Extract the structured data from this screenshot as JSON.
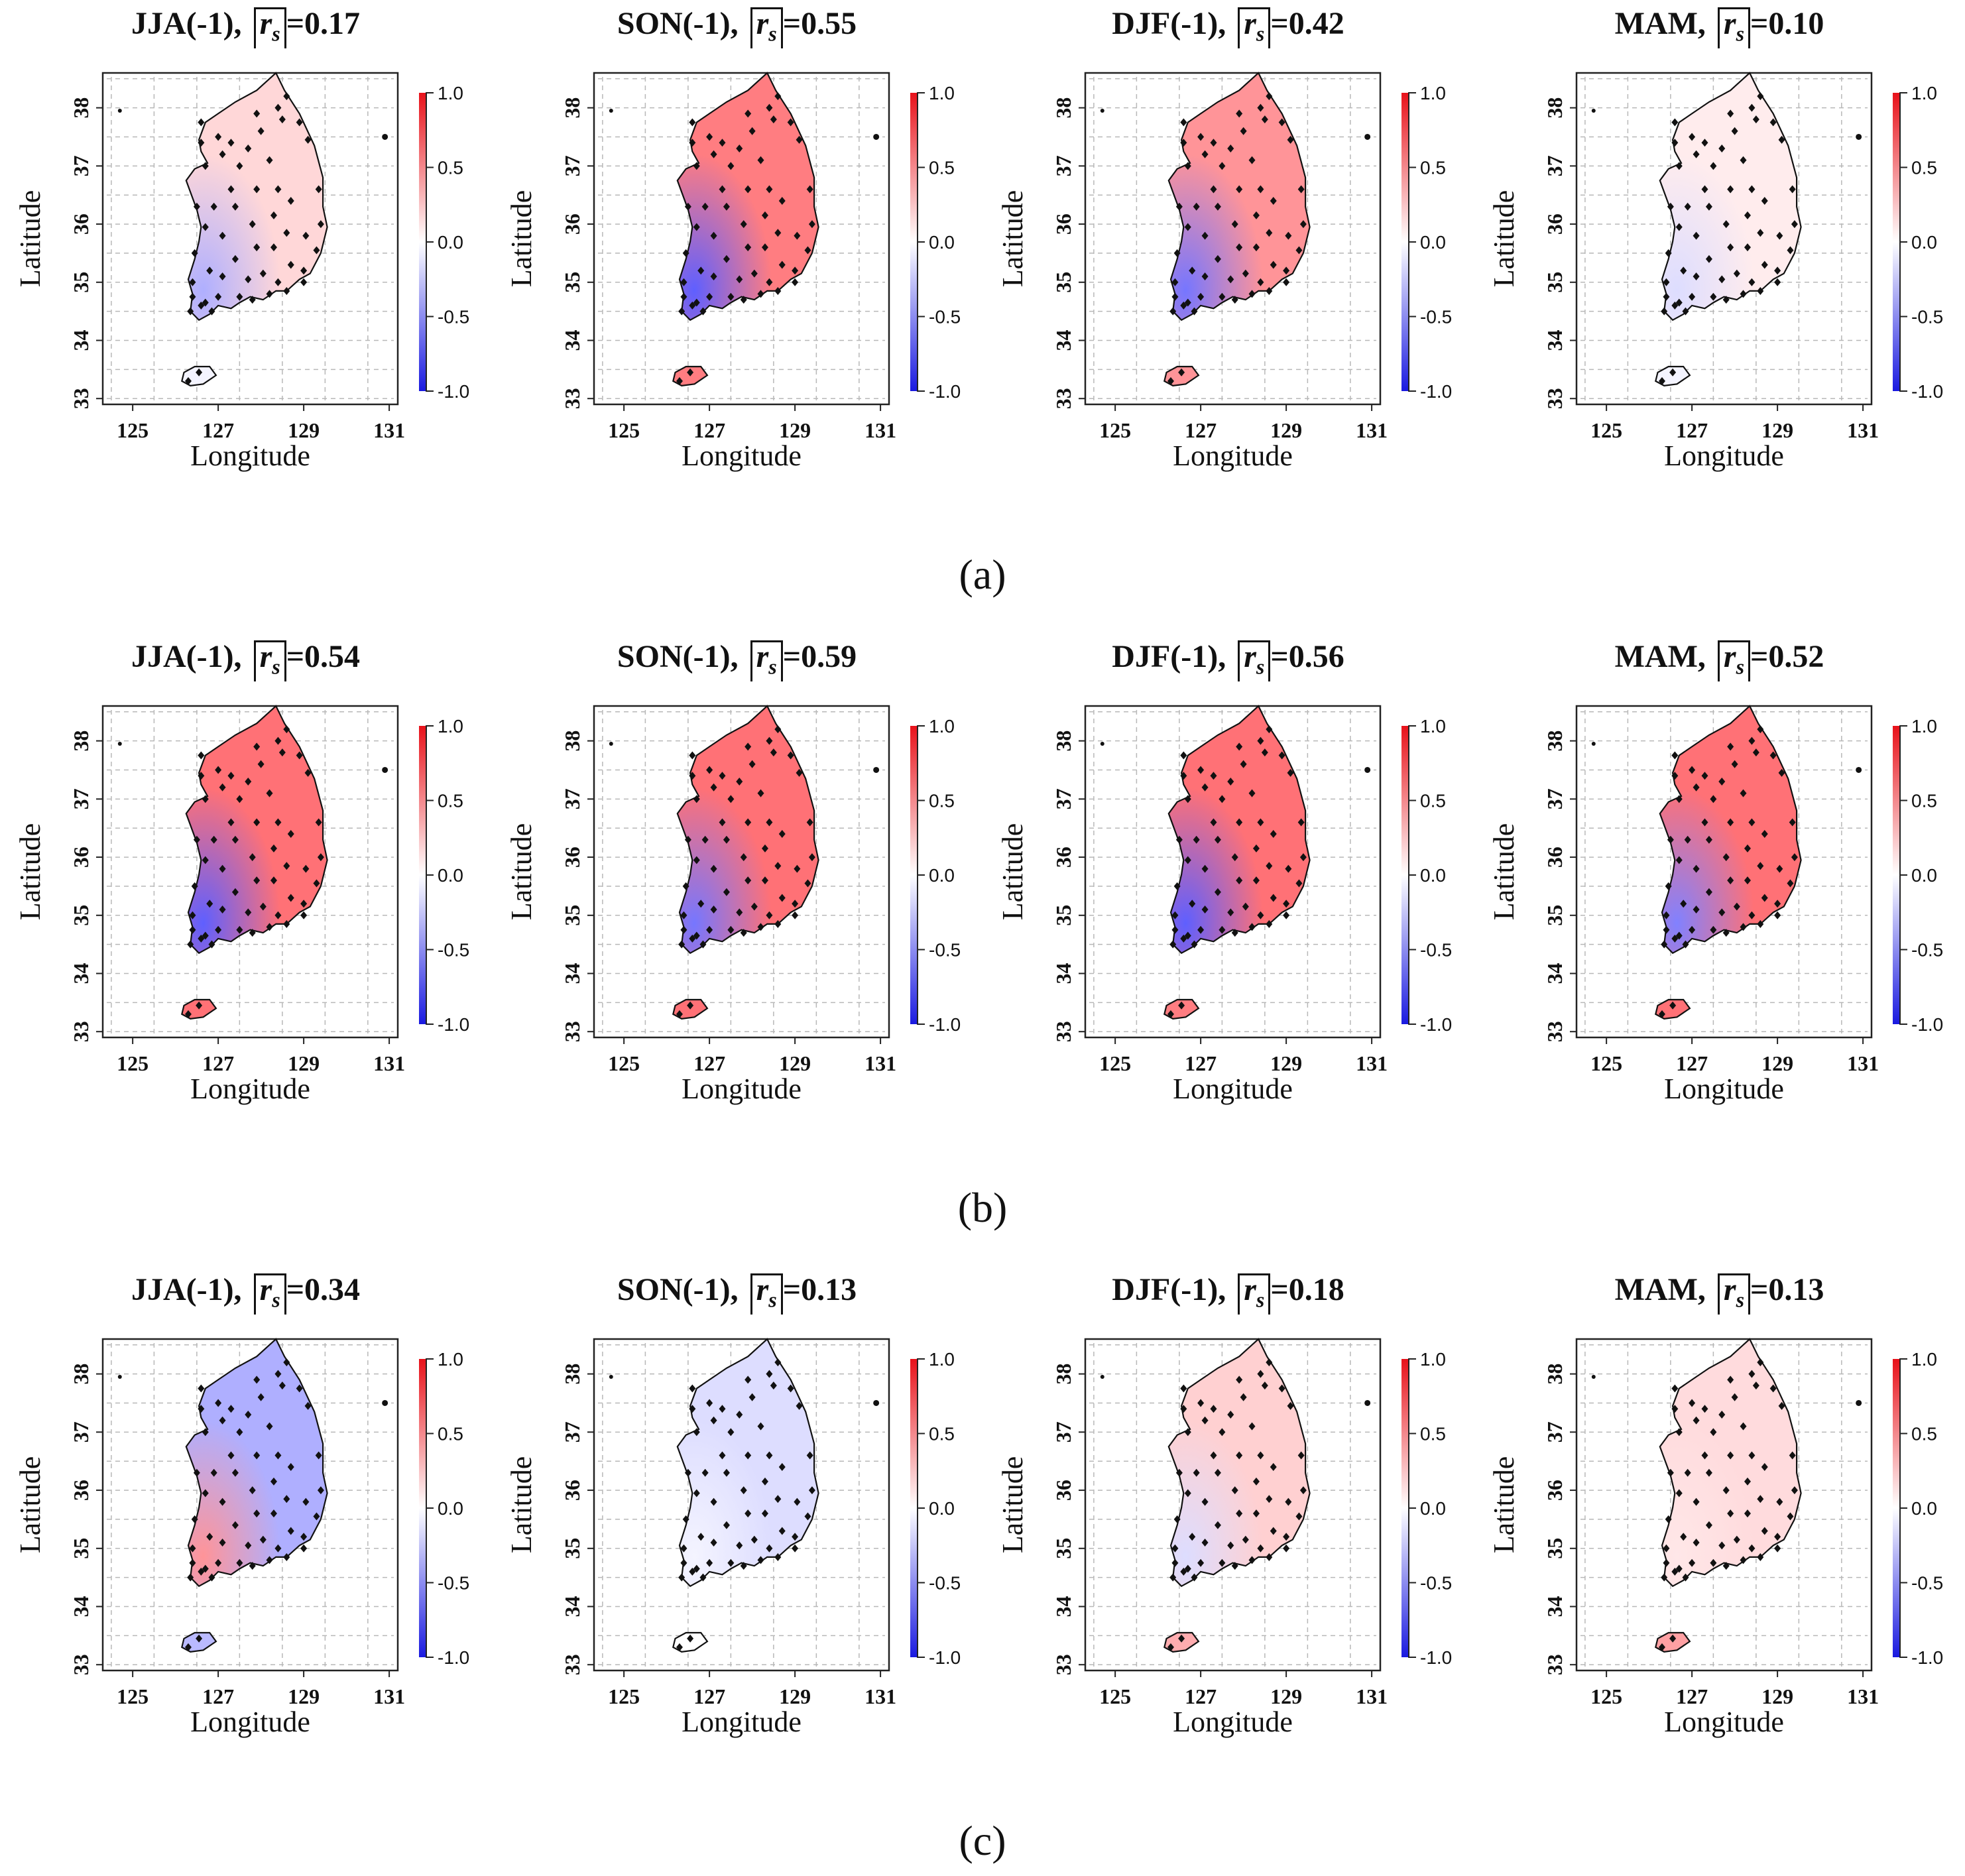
{
  "colorbar": {
    "ticks": [
      "1.0",
      "0.5",
      "0.0",
      "-0.5",
      "-1.0"
    ],
    "colors": {
      "high": "#e8121a",
      "mid": "#ffffff",
      "low": "#1a1ae0"
    }
  },
  "map_axes": {
    "xlabel": "Longitude",
    "ylabel": "Latitude",
    "xticks": [
      "125",
      "127",
      "129",
      "131"
    ],
    "yticks": [
      "33",
      "34",
      "35",
      "36",
      "37",
      "38"
    ],
    "xlim": [
      124.3,
      131.2
    ],
    "ylim": [
      32.9,
      38.6
    ]
  },
  "rows": [
    {
      "label": "(a)",
      "panels": [
        {
          "season": "JJA(-1),",
          "rs_label": "r",
          "rs_sub": "s",
          "rs_value": "=0.17",
          "mean_abs_rs": 0.17,
          "overall_tint": 0.17,
          "jeju_tint": -0.05,
          "southwest_tint": -0.35
        },
        {
          "season": "SON(-1),",
          "rs_label": "r",
          "rs_sub": "s",
          "rs_value": "=0.55",
          "mean_abs_rs": 0.55,
          "overall_tint": 0.55,
          "jeju_tint": 0.55,
          "southwest_tint": -0.7
        },
        {
          "season": "DJF(-1),",
          "rs_label": "r",
          "rs_sub": "s",
          "rs_value": "=0.42",
          "mean_abs_rs": 0.42,
          "overall_tint": 0.45,
          "jeju_tint": 0.45,
          "southwest_tint": -0.6
        },
        {
          "season": "MAM,",
          "rs_label": "r",
          "rs_sub": "s",
          "rs_value": "=0.10",
          "mean_abs_rs": 0.1,
          "overall_tint": 0.08,
          "jeju_tint": -0.05,
          "southwest_tint": -0.15
        }
      ]
    },
    {
      "label": "(b)",
      "panels": [
        {
          "season": "JJA(-1),",
          "rs_label": "r",
          "rs_sub": "s",
          "rs_value": "=0.54",
          "mean_abs_rs": 0.54,
          "overall_tint": 0.6,
          "jeju_tint": 0.6,
          "southwest_tint": -0.7
        },
        {
          "season": "SON(-1),",
          "rs_label": "r",
          "rs_sub": "s",
          "rs_value": "=0.59",
          "mean_abs_rs": 0.59,
          "overall_tint": 0.6,
          "jeju_tint": 0.6,
          "southwest_tint": -0.6
        },
        {
          "season": "DJF(-1),",
          "rs_label": "r",
          "rs_sub": "s",
          "rs_value": "=0.56",
          "mean_abs_rs": 0.56,
          "overall_tint": 0.6,
          "jeju_tint": 0.55,
          "southwest_tint": -0.7
        },
        {
          "season": "MAM,",
          "rs_label": "r",
          "rs_sub": "s",
          "rs_value": "=0.52",
          "mean_abs_rs": 0.52,
          "overall_tint": 0.6,
          "jeju_tint": 0.6,
          "southwest_tint": -0.55
        }
      ]
    },
    {
      "label": "(c)",
      "panels": [
        {
          "season": "JJA(-1),",
          "rs_label": "r",
          "rs_sub": "s",
          "rs_value": "=0.34",
          "mean_abs_rs": 0.34,
          "overall_tint": -0.35,
          "jeju_tint": -0.3,
          "southwest_tint": 0.45
        },
        {
          "season": "SON(-1),",
          "rs_label": "r",
          "rs_sub": "s",
          "rs_value": "=0.13",
          "mean_abs_rs": 0.13,
          "overall_tint": -0.15,
          "jeju_tint": 0.0,
          "southwest_tint": -0.05
        },
        {
          "season": "DJF(-1),",
          "rs_label": "r",
          "rs_sub": "s",
          "rs_value": "=0.18",
          "mean_abs_rs": 0.18,
          "overall_tint": 0.2,
          "jeju_tint": 0.35,
          "southwest_tint": -0.15
        },
        {
          "season": "MAM,",
          "rs_label": "r",
          "rs_sub": "s",
          "rs_value": "=0.13",
          "mean_abs_rs": 0.13,
          "overall_tint": 0.15,
          "jeju_tint": 0.4,
          "southwest_tint": 0.1
        }
      ]
    }
  ],
  "stations": [
    [
      126.6,
      37.75
    ],
    [
      127.0,
      37.5
    ],
    [
      127.3,
      37.4
    ],
    [
      127.7,
      37.3
    ],
    [
      128.0,
      37.6
    ],
    [
      128.5,
      37.8
    ],
    [
      128.9,
      37.75
    ],
    [
      128.6,
      38.2
    ],
    [
      128.4,
      38.0
    ],
    [
      127.9,
      37.9
    ],
    [
      127.1,
      37.2
    ],
    [
      126.6,
      37.4
    ],
    [
      127.5,
      37.0
    ],
    [
      128.2,
      37.1
    ],
    [
      129.1,
      37.45
    ],
    [
      129.35,
      36.6
    ],
    [
      126.7,
      37.0
    ],
    [
      127.3,
      36.6
    ],
    [
      127.9,
      36.6
    ],
    [
      128.4,
      36.6
    ],
    [
      128.7,
      36.4
    ],
    [
      129.4,
      36.0
    ],
    [
      126.5,
      36.3
    ],
    [
      126.9,
      36.3
    ],
    [
      127.4,
      36.3
    ],
    [
      127.8,
      36.0
    ],
    [
      128.3,
      36.15
    ],
    [
      128.6,
      35.85
    ],
    [
      129.05,
      35.8
    ],
    [
      129.3,
      35.55
    ],
    [
      126.7,
      35.95
    ],
    [
      127.1,
      35.8
    ],
    [
      127.4,
      35.4
    ],
    [
      127.9,
      35.6
    ],
    [
      128.3,
      35.6
    ],
    [
      128.7,
      35.3
    ],
    [
      129.0,
      35.2
    ],
    [
      126.45,
      35.5
    ],
    [
      126.8,
      35.2
    ],
    [
      127.1,
      35.1
    ],
    [
      127.7,
      35.05
    ],
    [
      128.05,
      35.15
    ],
    [
      128.4,
      35.0
    ],
    [
      126.4,
      35.0
    ],
    [
      126.4,
      34.75
    ],
    [
      126.7,
      34.65
    ],
    [
      127.0,
      34.75
    ],
    [
      127.5,
      34.75
    ],
    [
      127.8,
      34.7
    ],
    [
      128.2,
      34.8
    ],
    [
      126.35,
      34.5
    ],
    [
      126.6,
      34.6
    ],
    [
      128.6,
      34.85
    ],
    [
      129.0,
      35.0
    ],
    [
      126.85,
      34.5
    ],
    [
      126.55,
      33.45
    ],
    [
      126.3,
      33.3
    ]
  ]
}
